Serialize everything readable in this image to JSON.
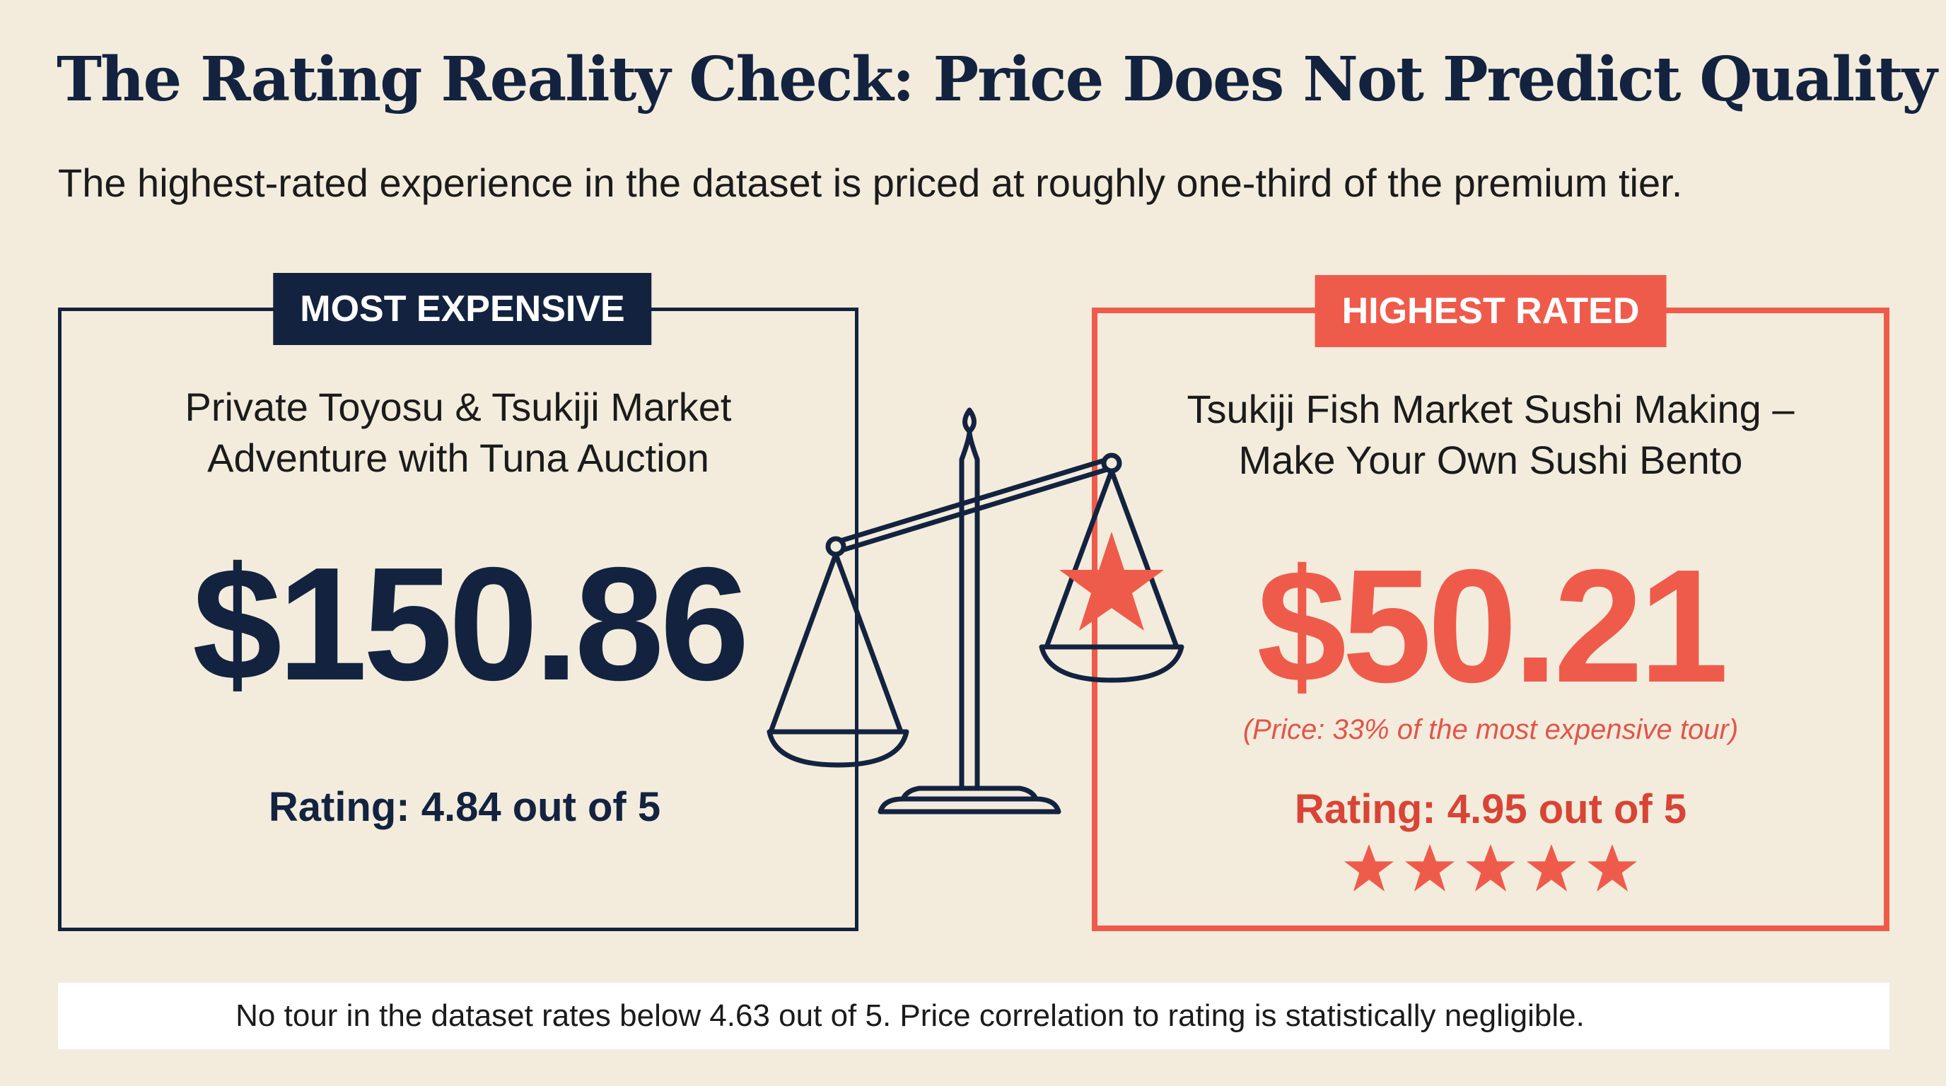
{
  "title": "The Rating Reality Check: Price Does Not Predict Quality",
  "subtitle": "The highest-rated experience in the dataset is priced at roughly one-third of the premium tier.",
  "most_expensive": {
    "tag": "MOST EXPENSIVE",
    "tour_line1": "Private Toyosu & Tsukiji Market",
    "tour_line2": "Adventure with Tuna Auction",
    "price": "$150.86",
    "rating": "Rating: 4.84 out of 5"
  },
  "highest_rated": {
    "tag": "HIGHEST RATED",
    "tour_line1": "Tsukiji Fish Market Sushi Making –",
    "tour_line2": "Make Your Own Sushi Bento",
    "price": "$50.21",
    "price_note": "(Price: 33% of the most expensive tour)",
    "rating": "Rating: 4.95 out of 5",
    "stars_value": 4.95,
    "stars_max": 5
  },
  "footer": "No tour in the dataset rates below 4.63 out of 5. Price correlation to rating is statistically negligible.",
  "colors": {
    "background": "#f3ecdd",
    "navy": "#13233f",
    "coral": "#ef5b4b"
  },
  "icons": {
    "scale": "balance-scale-icon",
    "star": "star-icon"
  }
}
